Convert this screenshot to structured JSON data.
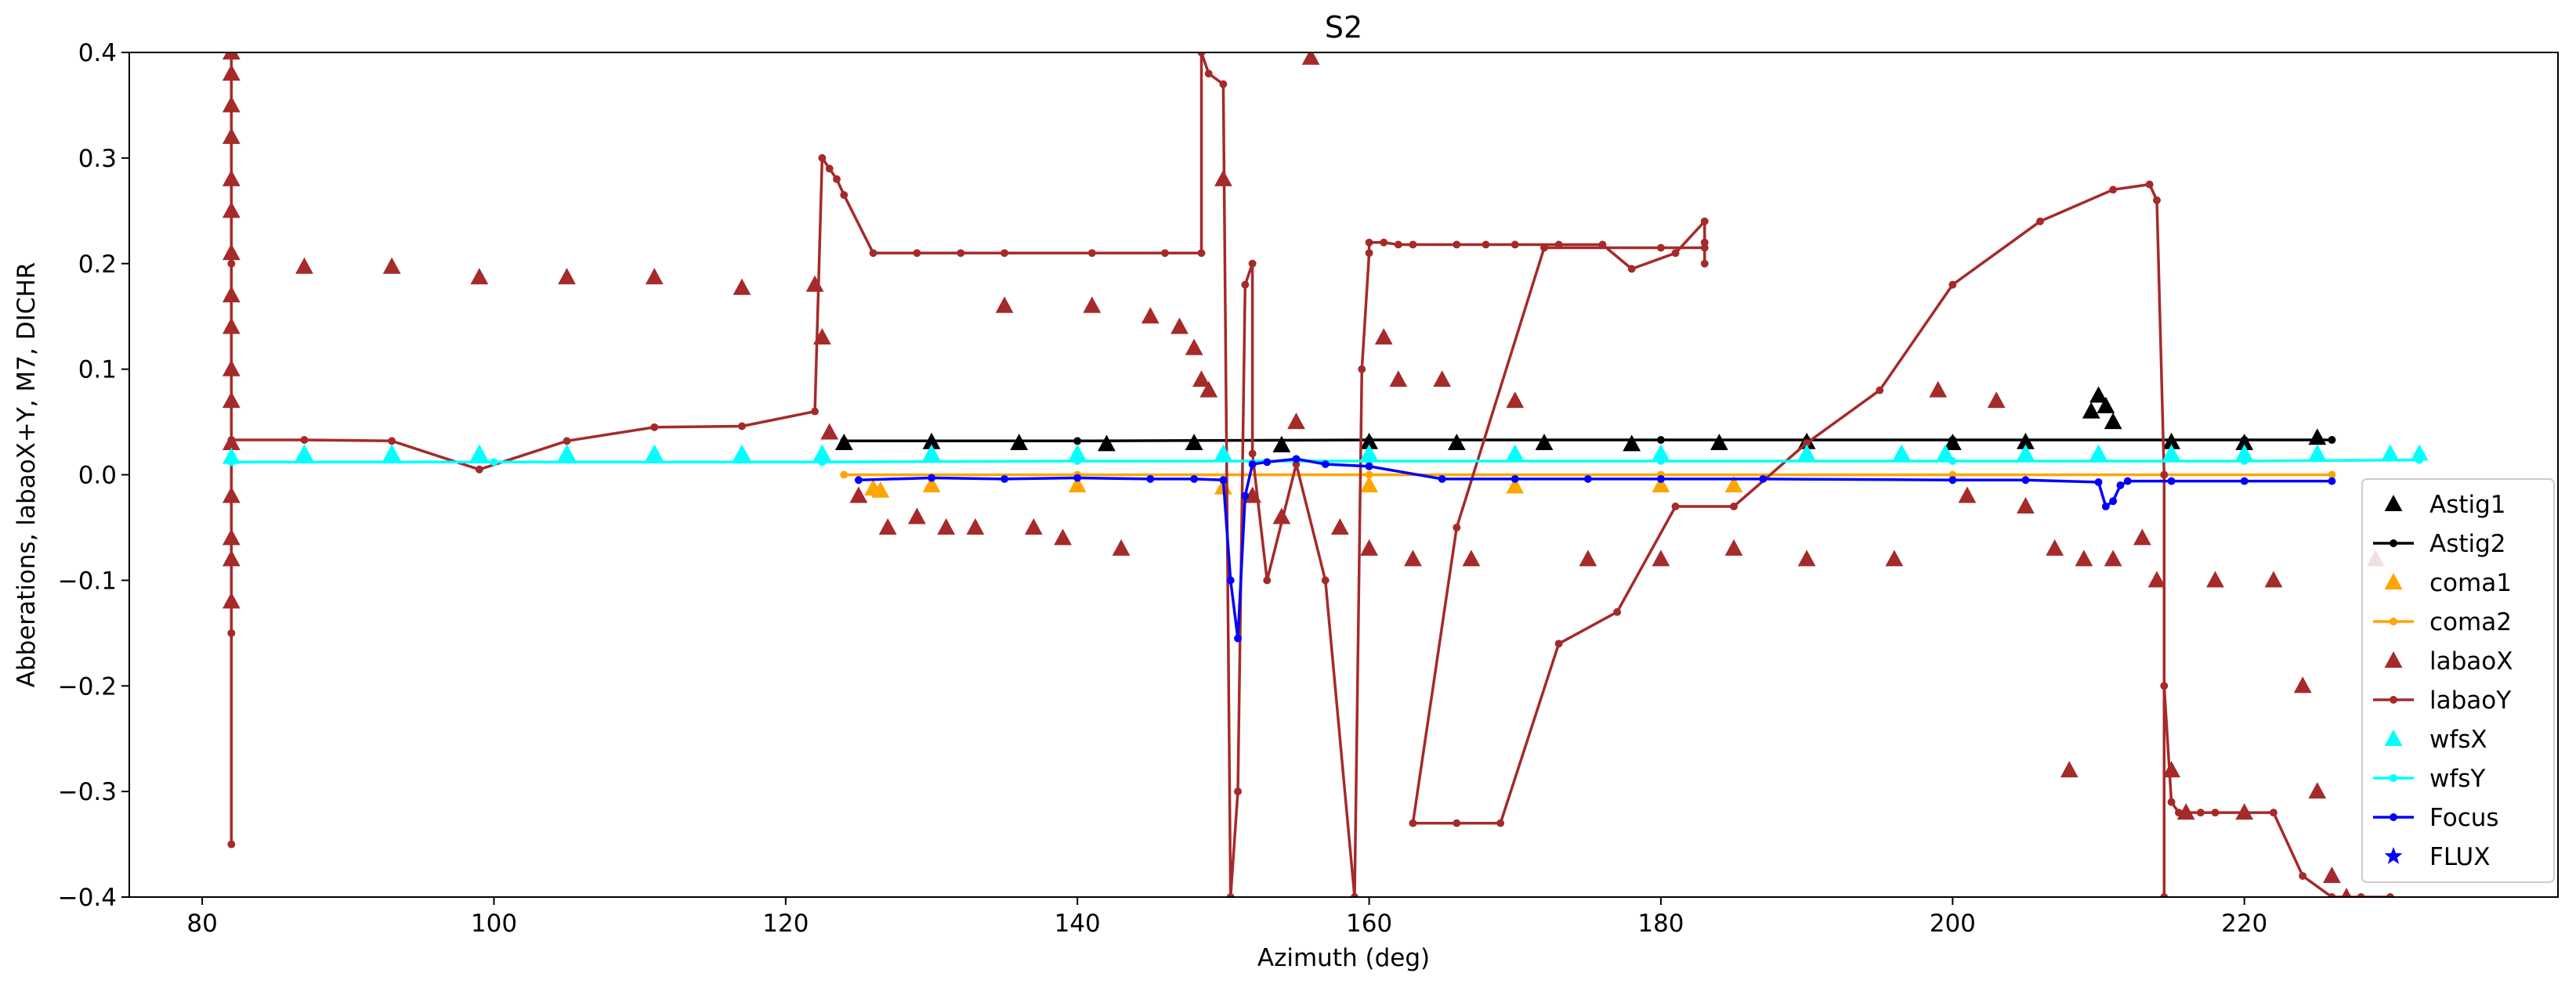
{
  "chart_data": {
    "type": "scatter",
    "title": "S2",
    "xlabel": "Azimuth (deg)",
    "ylabel": "Abberations, labaoX+Y, M7, DICHR",
    "xlim": [
      75,
      241.5
    ],
    "ylim": [
      -0.4,
      0.4
    ],
    "xticks": [
      80,
      100,
      120,
      140,
      160,
      180,
      200,
      220
    ],
    "yticks": [
      -0.4,
      -0.3,
      -0.2,
      -0.1,
      0.0,
      0.1,
      0.2,
      0.3,
      0.4
    ],
    "xtick_labels": [
      "80",
      "100",
      "120",
      "140",
      "160",
      "180",
      "200",
      "220"
    ],
    "ytick_labels": [
      "−0.4",
      "−0.3",
      "−0.2",
      "−0.1",
      "0.0",
      "0.1",
      "0.2",
      "0.3",
      "0.4"
    ],
    "grid": false,
    "legend_position": "lower-right",
    "series": [
      {
        "name": "Astig1",
        "color": "#000000",
        "marker": "triangle",
        "line": false,
        "x": [
          124,
          130,
          136,
          142,
          148,
          154,
          160,
          166,
          172,
          178,
          184,
          190,
          200,
          205,
          209.5,
          210,
          210.5,
          211,
          215,
          220,
          225
        ],
        "y": [
          0.03,
          0.031,
          0.03,
          0.029,
          0.03,
          0.028,
          0.031,
          0.03,
          0.03,
          0.029,
          0.03,
          0.031,
          0.03,
          0.031,
          0.06,
          0.075,
          0.065,
          0.05,
          0.031,
          0.03,
          0.035
        ]
      },
      {
        "name": "Astig2",
        "color": "#000000",
        "marker": "dot",
        "line": true,
        "x": [
          124,
          140,
          160,
          180,
          190,
          200,
          220,
          226
        ],
        "y": [
          0.032,
          0.032,
          0.033,
          0.033,
          0.033,
          0.033,
          0.033,
          0.033
        ]
      },
      {
        "name": "coma1",
        "color": "#ffa500",
        "marker": "triangle",
        "line": false,
        "x": [
          126,
          126.5,
          130,
          140,
          150,
          160,
          170,
          180,
          185
        ],
        "y": [
          -0.013,
          -0.015,
          -0.01,
          -0.01,
          -0.012,
          -0.01,
          -0.011,
          -0.01,
          -0.01
        ]
      },
      {
        "name": "coma2",
        "color": "#ffa500",
        "marker": "dot",
        "line": true,
        "x": [
          124,
          140,
          160,
          180,
          200,
          226
        ],
        "y": [
          0.0,
          0.0,
          0.0,
          0.0,
          0.0,
          0.0
        ]
      },
      {
        "name": "labaoX",
        "color": "#a52a2a",
        "marker": "triangle",
        "line": false,
        "x": [
          82,
          82,
          82,
          82,
          82,
          82,
          82,
          82,
          82,
          82,
          82,
          82,
          82,
          82,
          82,
          82,
          87,
          93,
          99,
          105,
          111,
          117,
          122,
          122.5,
          123,
          125,
          127,
          129,
          131,
          133,
          135,
          137,
          139,
          141,
          143,
          145,
          147,
          148,
          148.5,
          149,
          150,
          152,
          154,
          155,
          156,
          158,
          160,
          161,
          162,
          163,
          165,
          167,
          170,
          175,
          180,
          185,
          190,
          196,
          199,
          201,
          203,
          205,
          207,
          208,
          209,
          211,
          213,
          214,
          215,
          216,
          218,
          220,
          222,
          224,
          225,
          226,
          227,
          229
        ],
        "y": [
          0.4,
          0.38,
          0.35,
          0.32,
          0.28,
          0.25,
          0.21,
          0.17,
          0.14,
          0.1,
          0.07,
          0.03,
          -0.02,
          -0.06,
          -0.08,
          -0.12,
          0.197,
          0.197,
          0.187,
          0.187,
          0.187,
          0.177,
          0.18,
          0.13,
          0.04,
          -0.02,
          -0.05,
          -0.04,
          -0.05,
          -0.05,
          0.16,
          -0.05,
          -0.06,
          0.16,
          -0.07,
          0.15,
          0.14,
          0.12,
          0.09,
          0.08,
          0.28,
          -0.02,
          -0.04,
          0.05,
          0.395,
          -0.05,
          -0.07,
          0.13,
          0.09,
          -0.08,
          0.09,
          -0.08,
          0.07,
          -0.08,
          -0.08,
          -0.07,
          -0.08,
          -0.08,
          0.08,
          -0.02,
          0.07,
          -0.03,
          -0.07,
          -0.28,
          -0.08,
          -0.08,
          -0.06,
          -0.1,
          -0.28,
          -0.32,
          -0.1,
          -0.32,
          -0.1,
          -0.2,
          -0.3,
          -0.38,
          -0.4,
          -0.08
        ]
      },
      {
        "name": "labaoY",
        "color": "#a52a2a",
        "marker": "dot",
        "line": true,
        "x": [
          82,
          82,
          82,
          82,
          82,
          82,
          87,
          93,
          99,
          105,
          111,
          117,
          122,
          122.5,
          123,
          123.5,
          124,
          126,
          129,
          132,
          135,
          141,
          146,
          148.5,
          148.5,
          149,
          150,
          150.5,
          151,
          151.5,
          152,
          152,
          153,
          155,
          157,
          159,
          159.5,
          160,
          160,
          161,
          162,
          163,
          166,
          168,
          170,
          173,
          176,
          178,
          181,
          183,
          183,
          183,
          183,
          180,
          172,
          166,
          163,
          166,
          169,
          173,
          177,
          181,
          185,
          190,
          195,
          200,
          206,
          211,
          213.5,
          214,
          214.5,
          214.5,
          214.5,
          215,
          215.5,
          216,
          217,
          218,
          220,
          222,
          224,
          226,
          228,
          230
        ],
        "y": [
          -0.35,
          -0.15,
          0.1,
          0.4,
          0.2,
          0.033,
          0.033,
          0.032,
          0.005,
          0.032,
          0.045,
          0.046,
          0.06,
          0.3,
          0.29,
          0.28,
          0.265,
          0.21,
          0.21,
          0.21,
          0.21,
          0.21,
          0.21,
          0.21,
          0.4,
          0.38,
          0.37,
          -0.4,
          -0.3,
          0.18,
          0.2,
          0.02,
          -0.1,
          0.01,
          -0.1,
          -0.4,
          0.1,
          0.21,
          0.22,
          0.22,
          0.218,
          0.218,
          0.218,
          0.218,
          0.218,
          0.218,
          0.218,
          0.195,
          0.21,
          0.24,
          0.2,
          0.22,
          0.215,
          0.215,
          0.215,
          -0.05,
          -0.33,
          -0.33,
          -0.33,
          -0.16,
          -0.13,
          -0.03,
          -0.03,
          0.03,
          0.08,
          0.18,
          0.24,
          0.27,
          0.275,
          0.26,
          0.0,
          -0.4,
          -0.2,
          -0.31,
          -0.32,
          -0.32,
          -0.32,
          -0.32,
          -0.32,
          -0.32,
          -0.38,
          -0.4,
          -0.4,
          -0.4
        ]
      },
      {
        "name": "wfsX",
        "color": "#00ffff",
        "marker": "triangle",
        "line": false,
        "x": [
          82,
          87,
          93,
          99,
          105,
          111,
          117,
          122.5,
          130,
          140,
          150,
          160,
          170,
          180,
          190,
          196.5,
          199.5,
          205,
          210,
          215,
          220,
          225,
          230,
          232
        ],
        "y": [
          0.017,
          0.02,
          0.02,
          0.02,
          0.02,
          0.02,
          0.02,
          0.02,
          0.02,
          0.02,
          0.02,
          0.02,
          0.02,
          0.02,
          0.02,
          0.02,
          0.02,
          0.02,
          0.02,
          0.02,
          0.02,
          0.02,
          0.02,
          0.02
        ]
      },
      {
        "name": "wfsY",
        "color": "#00ffff",
        "marker": "dot",
        "line": true,
        "x": [
          82,
          100,
          122.5,
          140,
          160,
          180,
          200,
          220,
          232
        ],
        "y": [
          0.012,
          0.012,
          0.012,
          0.013,
          0.013,
          0.013,
          0.013,
          0.013,
          0.014
        ]
      },
      {
        "name": "Focus",
        "color": "#0000ff",
        "marker": "dot",
        "line": true,
        "x": [
          125,
          130,
          135,
          140,
          145,
          148,
          150,
          150.5,
          151,
          151.5,
          152,
          153,
          155,
          157,
          160,
          165,
          170,
          175,
          180,
          187,
          200,
          205,
          210,
          210.5,
          211,
          211.5,
          212,
          215,
          220,
          226
        ],
        "y": [
          -0.005,
          -0.003,
          -0.004,
          -0.003,
          -0.004,
          -0.004,
          -0.005,
          -0.1,
          -0.155,
          -0.02,
          0.01,
          0.012,
          0.015,
          0.01,
          0.008,
          -0.004,
          -0.004,
          -0.004,
          -0.004,
          -0.004,
          -0.005,
          -0.005,
          -0.007,
          -0.03,
          -0.025,
          -0.01,
          -0.006,
          -0.006,
          -0.006,
          -0.006
        ]
      },
      {
        "name": "FLUX",
        "color": "#0000ff",
        "marker": "star",
        "line": false,
        "x": [],
        "y": []
      }
    ]
  }
}
